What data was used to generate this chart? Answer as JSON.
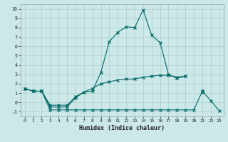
{
  "xlabel": "Humidex (Indice chaleur)",
  "x": [
    0,
    1,
    2,
    3,
    4,
    5,
    6,
    7,
    8,
    9,
    10,
    11,
    12,
    13,
    14,
    15,
    16,
    17,
    18,
    19,
    20,
    21,
    22,
    23
  ],
  "line1": [
    1.5,
    1.2,
    1.2,
    -0.3,
    -0.3,
    -0.3,
    0.6,
    1.1,
    1.2,
    3.2,
    6.5,
    7.5,
    8.1,
    8.0,
    9.9,
    7.2,
    6.4,
    3.0,
    2.6,
    2.8,
    null,
    1.2,
    null,
    null
  ],
  "line2": [
    1.5,
    1.2,
    1.2,
    -0.5,
    -0.5,
    -0.5,
    0.5,
    1.1,
    1.5,
    2.0,
    2.2,
    2.4,
    2.5,
    2.5,
    2.7,
    2.8,
    2.9,
    2.9,
    2.7,
    2.8,
    null,
    1.1,
    null,
    null
  ],
  "line3": [
    1.5,
    1.2,
    1.2,
    -0.8,
    -0.8,
    -0.8,
    -0.8,
    -0.8,
    -0.8,
    -0.8,
    -0.8,
    -0.8,
    -0.8,
    -0.8,
    -0.8,
    -0.8,
    -0.8,
    -0.8,
    -0.8,
    -0.8,
    -0.8,
    1.2,
    0.2,
    -0.9
  ],
  "bg_color": "#cce8e8",
  "line_color": "#006666",
  "grid_color": "#aacece",
  "ylim": [
    -1.5,
    10.5
  ],
  "xlim": [
    -0.5,
    23.5
  ],
  "yticks": [
    -1,
    0,
    1,
    2,
    3,
    4,
    5,
    6,
    7,
    8,
    9,
    10
  ],
  "xticks": [
    0,
    1,
    2,
    3,
    4,
    5,
    6,
    7,
    8,
    9,
    10,
    11,
    12,
    13,
    14,
    15,
    16,
    17,
    18,
    19,
    20,
    21,
    22,
    23
  ]
}
